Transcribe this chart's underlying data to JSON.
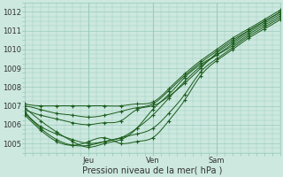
{
  "xlabel": "Pression niveau de la mer( hPa )",
  "bg_color": "#cce8df",
  "grid_color": "#99ccbb",
  "line_color": "#1a5c1a",
  "ylim": [
    1004.5,
    1012.5
  ],
  "xlim": [
    0,
    96
  ],
  "day_ticks": [
    24,
    48,
    72
  ],
  "day_labels": [
    "Jeu",
    "Ven",
    "Sam"
  ],
  "yticks": [
    1005,
    1006,
    1007,
    1008,
    1009,
    1010,
    1011,
    1012
  ],
  "figsize": [
    3.2,
    2.0
  ],
  "dpi": 100,
  "lines": [
    {
      "points": [
        [
          0,
          1006.8
        ],
        [
          6,
          1006.5
        ],
        [
          12,
          1006.3
        ],
        [
          18,
          1006.1
        ],
        [
          24,
          1006.0
        ],
        [
          30,
          1006.1
        ],
        [
          36,
          1006.2
        ],
        [
          42,
          1006.8
        ],
        [
          48,
          1007.0
        ],
        [
          54,
          1007.5
        ],
        [
          60,
          1008.2
        ],
        [
          66,
          1009.0
        ],
        [
          72,
          1009.8
        ],
        [
          78,
          1010.4
        ],
        [
          84,
          1011.0
        ],
        [
          90,
          1011.5
        ],
        [
          96,
          1012.0
        ]
      ]
    },
    {
      "points": [
        [
          0,
          1006.7
        ],
        [
          6,
          1005.9
        ],
        [
          12,
          1005.5
        ],
        [
          18,
          1005.2
        ],
        [
          24,
          1005.0
        ],
        [
          30,
          1005.1
        ],
        [
          36,
          1005.3
        ],
        [
          42,
          1005.8
        ],
        [
          48,
          1006.5
        ],
        [
          54,
          1007.4
        ],
        [
          60,
          1008.3
        ],
        [
          66,
          1009.1
        ],
        [
          72,
          1009.7
        ],
        [
          78,
          1010.3
        ],
        [
          84,
          1010.9
        ],
        [
          90,
          1011.4
        ],
        [
          96,
          1011.9
        ]
      ]
    },
    {
      "points": [
        [
          0,
          1006.9
        ],
        [
          6,
          1006.2
        ],
        [
          12,
          1005.6
        ],
        [
          18,
          1005.1
        ],
        [
          24,
          1004.8
        ],
        [
          30,
          1005.0
        ],
        [
          36,
          1005.2
        ],
        [
          42,
          1005.8
        ],
        [
          48,
          1006.8
        ],
        [
          54,
          1007.6
        ],
        [
          60,
          1008.5
        ],
        [
          66,
          1009.2
        ],
        [
          72,
          1009.7
        ],
        [
          78,
          1010.2
        ],
        [
          84,
          1010.8
        ],
        [
          90,
          1011.3
        ],
        [
          96,
          1011.8
        ]
      ]
    },
    {
      "points": [
        [
          0,
          1007.0
        ],
        [
          6,
          1006.8
        ],
        [
          12,
          1006.6
        ],
        [
          18,
          1006.5
        ],
        [
          24,
          1006.4
        ],
        [
          30,
          1006.5
        ],
        [
          36,
          1006.7
        ],
        [
          42,
          1006.9
        ],
        [
          48,
          1007.1
        ],
        [
          54,
          1007.8
        ],
        [
          60,
          1008.6
        ],
        [
          66,
          1009.3
        ],
        [
          72,
          1009.9
        ],
        [
          78,
          1010.5
        ],
        [
          84,
          1011.0
        ],
        [
          90,
          1011.5
        ],
        [
          96,
          1012.0
        ]
      ]
    },
    {
      "points": [
        [
          0,
          1007.1
        ],
        [
          6,
          1007.0
        ],
        [
          12,
          1007.0
        ],
        [
          18,
          1007.0
        ],
        [
          24,
          1007.0
        ],
        [
          30,
          1007.0
        ],
        [
          36,
          1007.0
        ],
        [
          42,
          1007.1
        ],
        [
          48,
          1007.2
        ],
        [
          54,
          1007.9
        ],
        [
          60,
          1008.7
        ],
        [
          66,
          1009.4
        ],
        [
          72,
          1010.0
        ],
        [
          78,
          1010.6
        ],
        [
          84,
          1011.1
        ],
        [
          90,
          1011.6
        ],
        [
          96,
          1012.1
        ]
      ]
    },
    {
      "points": [
        [
          0,
          1006.6
        ],
        [
          6,
          1005.8
        ],
        [
          12,
          1005.2
        ],
        [
          18,
          1004.9
        ],
        [
          24,
          1004.9
        ],
        [
          30,
          1005.1
        ],
        [
          36,
          1005.3
        ],
        [
          42,
          1005.5
        ],
        [
          48,
          1005.8
        ],
        [
          54,
          1006.6
        ],
        [
          60,
          1007.6
        ],
        [
          66,
          1008.8
        ],
        [
          72,
          1009.5
        ],
        [
          78,
          1010.1
        ],
        [
          84,
          1010.7
        ],
        [
          90,
          1011.2
        ],
        [
          96,
          1011.7
        ]
      ]
    },
    {
      "points": [
        [
          0,
          1006.5
        ],
        [
          6,
          1005.7
        ],
        [
          12,
          1005.1
        ],
        [
          18,
          1004.9
        ],
        [
          24,
          1005.1
        ],
        [
          30,
          1005.3
        ],
        [
          36,
          1005.0
        ],
        [
          42,
          1005.1
        ],
        [
          48,
          1005.3
        ],
        [
          54,
          1006.2
        ],
        [
          60,
          1007.3
        ],
        [
          66,
          1008.6
        ],
        [
          72,
          1009.4
        ],
        [
          78,
          1010.0
        ],
        [
          84,
          1010.6
        ],
        [
          90,
          1011.1
        ],
        [
          96,
          1011.6
        ]
      ]
    }
  ]
}
